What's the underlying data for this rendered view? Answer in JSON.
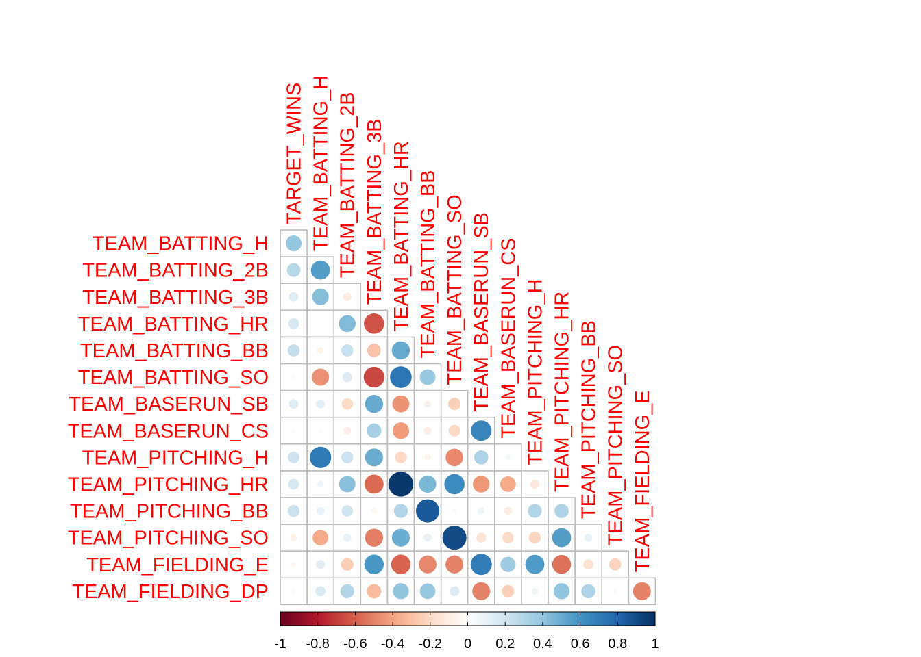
{
  "chart_data": {
    "type": "heatmap",
    "style": "correlation-matrix-circles-lower-triangle",
    "columns": [
      "TARGET_WINS",
      "TEAM_BATTING_H",
      "TEAM_BATTING_2B",
      "TEAM_BATTING_3B",
      "TEAM_BATTING_HR",
      "TEAM_BATTING_BB",
      "TEAM_BATTING_SO",
      "TEAM_BASERUN_SB",
      "TEAM_BASERUN_CS",
      "TEAM_PITCHING_H",
      "TEAM_PITCHING_HR",
      "TEAM_PITCHING_BB",
      "TEAM_PITCHING_SO",
      "TEAM_FIELDING_E"
    ],
    "rows": [
      "TEAM_BATTING_H",
      "TEAM_BATTING_2B",
      "TEAM_BATTING_3B",
      "TEAM_BATTING_HR",
      "TEAM_BATTING_BB",
      "TEAM_BATTING_SO",
      "TEAM_BASERUN_SB",
      "TEAM_BASERUN_CS",
      "TEAM_PITCHING_H",
      "TEAM_PITCHING_HR",
      "TEAM_PITCHING_BB",
      "TEAM_PITCHING_SO",
      "TEAM_FIELDING_E",
      "TEAM_FIELDING_DP"
    ],
    "values": [
      [
        0.39
      ],
      [
        0.29,
        0.56
      ],
      [
        0.14,
        0.43,
        -0.11
      ],
      [
        0.18,
        0.0,
        0.44,
        -0.64
      ],
      [
        0.23,
        -0.07,
        0.23,
        -0.29,
        0.51
      ],
      [
        -0.03,
        -0.46,
        0.15,
        -0.67,
        0.73,
        0.38
      ],
      [
        0.14,
        0.12,
        -0.2,
        0.51,
        -0.45,
        -0.08,
        -0.24
      ],
      [
        0.02,
        0.02,
        -0.09,
        0.33,
        -0.43,
        -0.09,
        -0.21,
        0.66
      ],
      [
        0.21,
        0.71,
        0.22,
        0.5,
        -0.21,
        -0.06,
        -0.48,
        0.31,
        0.05
      ],
      [
        0.18,
        0.07,
        0.42,
        -0.57,
        0.97,
        0.46,
        0.64,
        -0.44,
        -0.38,
        -0.13
      ],
      [
        0.22,
        0.1,
        0.2,
        -0.05,
        0.3,
        0.85,
        0.03,
        0.08,
        -0.1,
        0.3,
        0.31
      ],
      [
        -0.08,
        -0.38,
        0.1,
        -0.51,
        0.5,
        0.1,
        0.9,
        -0.15,
        -0.2,
        -0.22,
        0.56,
        0.1
      ],
      [
        -0.05,
        0.13,
        -0.25,
        0.59,
        -0.59,
        -0.49,
        -0.5,
        0.7,
        0.36,
        0.57,
        -0.55,
        -0.16,
        -0.23
      ],
      [
        -0.04,
        0.16,
        0.3,
        -0.32,
        0.4,
        0.38,
        0.15,
        -0.5,
        -0.24,
        0.07,
        0.4,
        0.31,
        -0.03,
        -0.5
      ]
    ],
    "colorbar": {
      "range": [
        -1,
        1
      ],
      "ticks": [
        "-1",
        "-0.8",
        "-0.6",
        "-0.4",
        "-0.2",
        "0",
        "0.2",
        "0.4",
        "0.6",
        "0.8",
        "1"
      ],
      "palette": [
        "#67001F",
        "#B2182B",
        "#D6604D",
        "#F4A582",
        "#FDDBC7",
        "#FFFFFF",
        "#D1E5F0",
        "#92C5DE",
        "#4393C3",
        "#2166AC",
        "#053061"
      ]
    },
    "label_color": "#ff0000",
    "grid_color": "#bbbbbb"
  }
}
